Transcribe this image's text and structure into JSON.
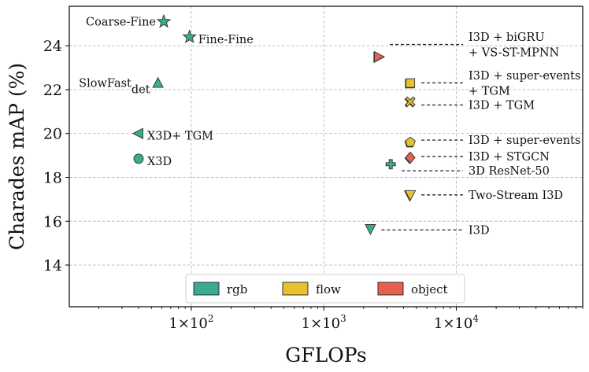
{
  "chart_data": {
    "type": "scatter",
    "xscale": "log",
    "xlim": [
      12,
      90000
    ],
    "ylim": [
      12.1,
      25.8
    ],
    "xlabel": "GFLOPs",
    "ylabel": "Charades mAP (%)",
    "yticks": [
      14,
      16,
      18,
      20,
      22,
      24
    ],
    "xticks": [
      {
        "value": 100,
        "base": "1×10",
        "exp": "2"
      },
      {
        "value": 1000,
        "base": "1×10",
        "exp": "3"
      },
      {
        "value": 10000,
        "base": "1×10",
        "exp": "4"
      }
    ],
    "grid": true,
    "legend_position": "bottom-center",
    "legend": [
      {
        "label": "rgb",
        "color": "#3aaa90"
      },
      {
        "label": "flow",
        "color": "#e8c12e"
      },
      {
        "label": "object",
        "color": "#e7604f"
      }
    ],
    "points": [
      {
        "name": "Coarse-Fine",
        "x": 62,
        "y": 25.1,
        "marker": "star",
        "colors": [
          "#3aaa90"
        ],
        "label": "Coarse-Fine",
        "label_side": "left"
      },
      {
        "name": "Fine-Fine",
        "x": 97,
        "y": 24.4,
        "marker": "star",
        "colors": [
          "#3aaa90"
        ],
        "label": "Fine-Fine",
        "label_side": "right"
      },
      {
        "name": "SlowFast_det",
        "x": 56,
        "y": 22.3,
        "marker": "triangle-up",
        "colors": [
          "#3aaa90"
        ],
        "label": "SlowFast",
        "label_sub": "det",
        "label_side": "left"
      },
      {
        "name": "X3D + TGM",
        "x": 40,
        "y": 20.0,
        "marker": "triangle-left",
        "colors": [
          "#3aaa90"
        ],
        "label": "X3D+ TGM",
        "label_side": "right"
      },
      {
        "name": "X3D",
        "x": 40,
        "y": 18.85,
        "marker": "circle",
        "colors": [
          "#3aaa90"
        ],
        "label": "X3D",
        "label_side": "right"
      },
      {
        "name": "I3D + biGRU + VS-ST-MPNN",
        "x": 2600,
        "y": 23.5,
        "marker": "triangle-right",
        "colors": [
          "#e7604f",
          "#3aaa90"
        ],
        "label_lines": [
          "I3D + biGRU",
          "+ VS-ST-MPNN"
        ],
        "label_y": [
          24.4,
          23.7
        ],
        "label_side": "far"
      },
      {
        "name": "I3D + super-events + TGM",
        "x": 4500,
        "y": 22.3,
        "marker": "square",
        "colors": [
          "#e8c12e",
          "#3aaa90"
        ],
        "label_lines": [
          "I3D + super-events",
          "+ TGM"
        ],
        "label_y": [
          22.65,
          21.95
        ],
        "label_side": "far"
      },
      {
        "name": "I3D + TGM",
        "x": 4500,
        "y": 21.45,
        "marker": "x",
        "colors": [
          "#e8c12e",
          "#3aaa90"
        ],
        "label_lines": [
          "I3D + TGM"
        ],
        "label_y": [
          21.3
        ],
        "label_side": "far"
      },
      {
        "name": "I3D + super-events",
        "x": 4500,
        "y": 19.6,
        "marker": "pentagon",
        "colors": [
          "#e8c12e",
          "#3aaa90"
        ],
        "label_lines": [
          "I3D + super-events"
        ],
        "label_y": [
          19.7
        ],
        "label_side": "far"
      },
      {
        "name": "I3D + STGCN",
        "x": 4500,
        "y": 18.9,
        "marker": "diamond",
        "colors": [
          "#e7604f",
          "#3aaa90"
        ],
        "label_lines": [
          "I3D + STGCN"
        ],
        "label_y": [
          18.95
        ],
        "label_side": "far"
      },
      {
        "name": "3D ResNet-50",
        "x": 3200,
        "y": 18.6,
        "marker": "plus",
        "colors": [
          "#3aaa90"
        ],
        "label_lines": [
          "3D ResNet-50"
        ],
        "label_y": [
          18.3
        ],
        "label_side": "far"
      },
      {
        "name": "Two-Stream I3D",
        "x": 4500,
        "y": 17.2,
        "marker": "triangle-down",
        "colors": [
          "#e8c12e",
          "#3aaa90"
        ],
        "label_lines": [
          "Two-Stream I3D"
        ],
        "label_y": [
          17.2
        ],
        "label_side": "far"
      },
      {
        "name": "I3D",
        "x": 2250,
        "y": 15.65,
        "marker": "triangle-down",
        "colors": [
          "#3aaa90"
        ],
        "label_lines": [
          "I3D"
        ],
        "label_y": [
          15.6
        ],
        "label_side": "far"
      }
    ]
  }
}
